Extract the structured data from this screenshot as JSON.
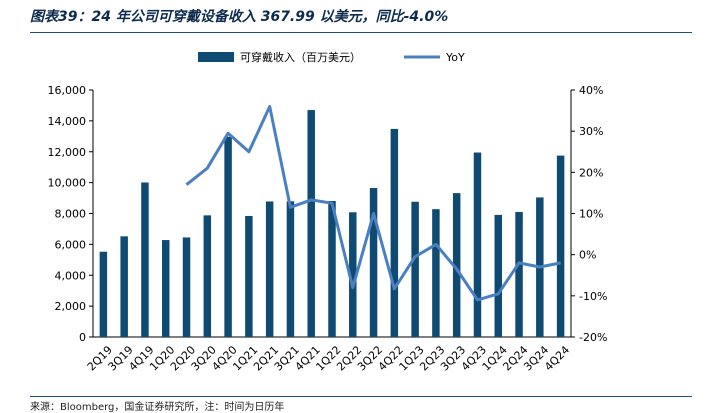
{
  "title": "图表39：24 年公司可穿戴设备收入 367.99 以美元，同比-4.0%",
  "source": "来源：Bloomberg，国金证券研究所，注：时间为日历年",
  "colors": {
    "bar": "#0f4a73",
    "line": "#4a7fc1",
    "rule": "#1f4e79",
    "title": "#0d2b4e"
  },
  "chart_data": {
    "type": "bar",
    "categories": [
      "2Q19",
      "3Q19",
      "4Q19",
      "1Q20",
      "2Q20",
      "3Q20",
      "4Q20",
      "1Q21",
      "2Q21",
      "3Q21",
      "4Q21",
      "1Q22",
      "2Q22",
      "3Q22",
      "4Q22",
      "1Q23",
      "2Q23",
      "3Q23",
      "4Q23",
      "1Q24",
      "2Q24",
      "3Q24",
      "4Q24"
    ],
    "series": [
      {
        "name": "可穿戴收入（百万美元）",
        "type": "bar",
        "axis": "left",
        "values": [
          5525,
          6520,
          10010,
          6280,
          6450,
          7880,
          12970,
          7840,
          8780,
          8790,
          14700,
          8810,
          8080,
          9650,
          13480,
          8760,
          8280,
          9320,
          11950,
          7910,
          8100,
          9040,
          11750
        ]
      },
      {
        "name": "YoY",
        "type": "line",
        "axis": "right",
        "values": [
          null,
          null,
          null,
          null,
          17,
          21,
          29.5,
          25,
          36,
          11.5,
          13.3,
          12.5,
          -8,
          10,
          -8.3,
          -0.5,
          2.5,
          -3.5,
          -11,
          -9.5,
          -2,
          -3,
          -2
        ]
      }
    ],
    "ylim_left": [
      0,
      16000
    ],
    "yticks_left": [
      "0",
      "2,000",
      "4,000",
      "6,000",
      "8,000",
      "10,000",
      "12,000",
      "14,000",
      "16,000"
    ],
    "ylim_right": [
      -20,
      40
    ],
    "yticks_right": [
      "-20%",
      "-10%",
      "0%",
      "10%",
      "20%",
      "30%",
      "40%"
    ],
    "legend_position": "top",
    "grid": false
  }
}
